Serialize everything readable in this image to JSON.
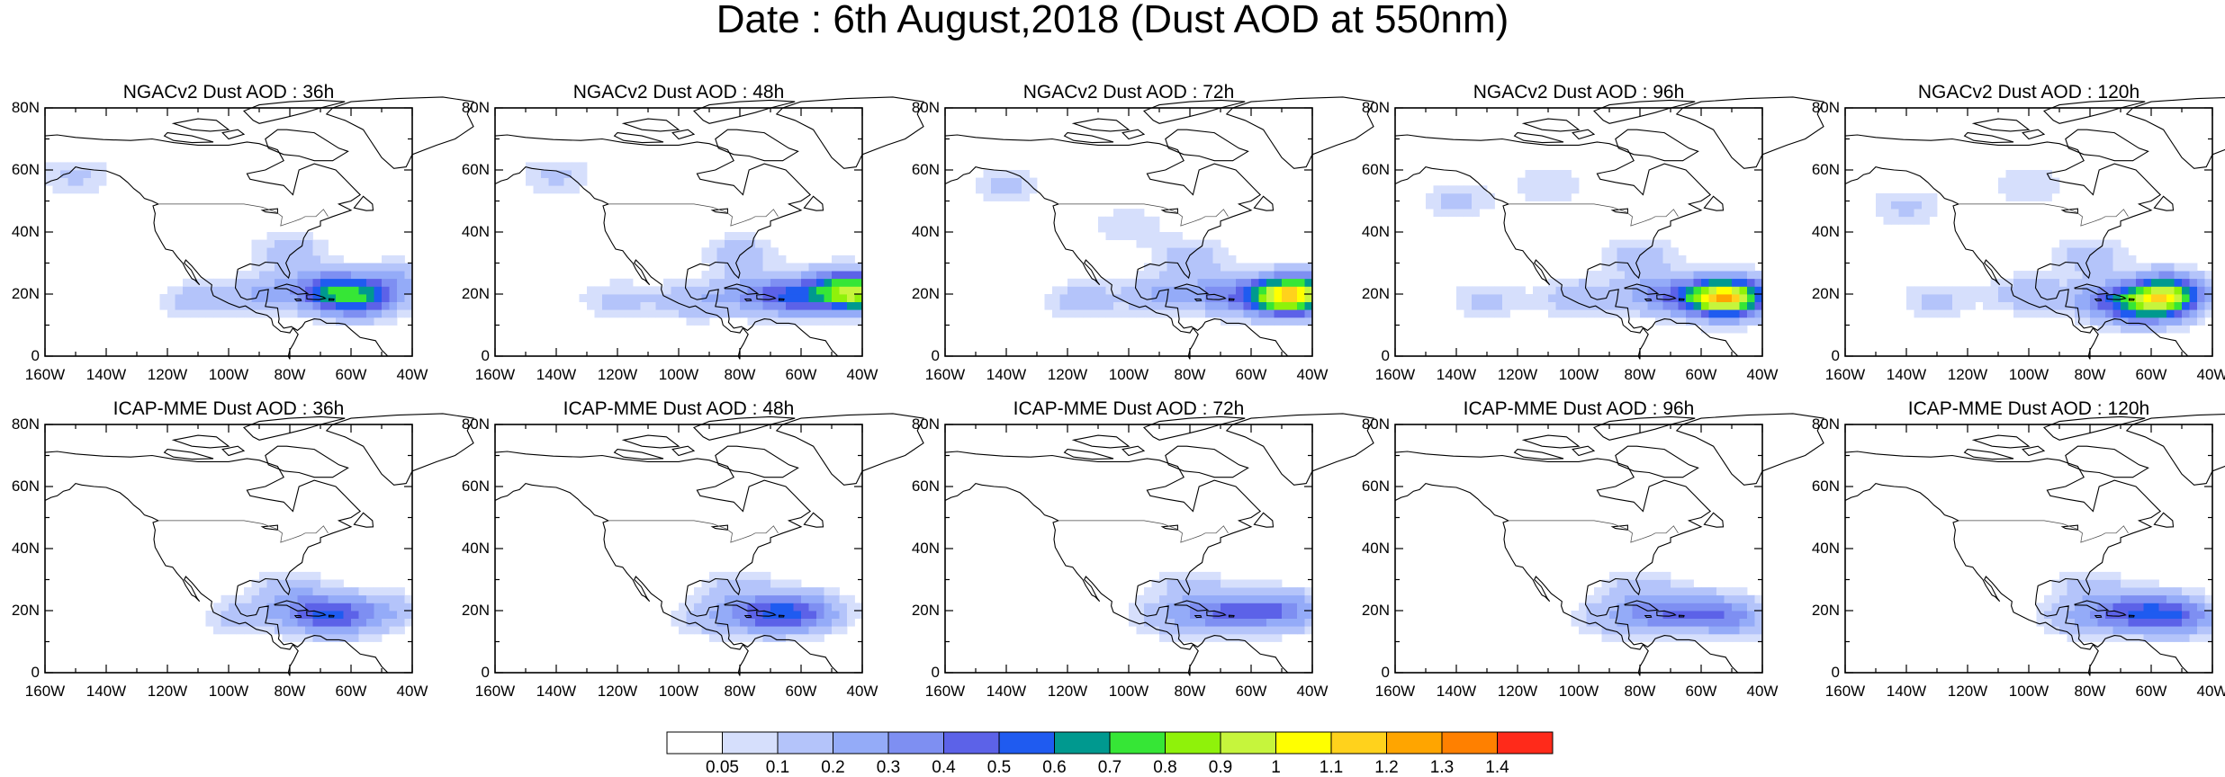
{
  "title": "Date : 6th August,2018 (Dust AOD at 550nm)",
  "axes": {
    "lon_ticks": [
      "160W",
      "140W",
      "120W",
      "100W",
      "80W",
      "60W",
      "40W"
    ],
    "lat_ticks": [
      "0",
      "20N",
      "40N",
      "60N",
      "80N"
    ],
    "lon_range": [
      -160,
      -40
    ],
    "lat_range": [
      0,
      80
    ]
  },
  "panels": [
    {
      "title": "NGACv2 Dust AOD : 36h"
    },
    {
      "title": "NGACv2 Dust AOD : 48h"
    },
    {
      "title": "NGACv2 Dust AOD : 72h"
    },
    {
      "title": "NGACv2 Dust AOD : 96h"
    },
    {
      "title": "NGACv2 Dust AOD : 120h"
    },
    {
      "title": "ICAP-MME Dust AOD : 36h"
    },
    {
      "title": "ICAP-MME Dust AOD : 48h"
    },
    {
      "title": "ICAP-MME Dust AOD : 72h"
    },
    {
      "title": "ICAP-MME Dust AOD : 96h"
    },
    {
      "title": "ICAP-MME Dust AOD : 120h"
    }
  ],
  "colorbar": {
    "labels": [
      "0.05",
      "0.1",
      "0.2",
      "0.3",
      "0.4",
      "0.5",
      "0.6",
      "0.7",
      "0.8",
      "0.9",
      "1",
      "1.1",
      "1.2",
      "1.3",
      "1.4"
    ],
    "colors": [
      "#ffffff",
      "#d6dffc",
      "#b4c4fa",
      "#94abf8",
      "#7e8ff2",
      "#5c62e8",
      "#1f5bf0",
      "#00998f",
      "#36e636",
      "#8ff20a",
      "#c6f53c",
      "#ffff00",
      "#ffd21c",
      "#ffa500",
      "#ff8000",
      "#ff2a1a"
    ]
  },
  "plumes": [
    [
      {
        "lon": -62,
        "lat": 20,
        "v": 0.42
      },
      {
        "lon": -70,
        "lat": 22,
        "v": 0.28
      },
      {
        "lon": -56,
        "lat": 18,
        "v": 0.3
      },
      {
        "lon": -88,
        "lat": 20,
        "v": 0.2
      },
      {
        "lon": -110,
        "lat": 18,
        "v": 0.15
      },
      {
        "lon": -80,
        "lat": 34,
        "v": 0.15
      },
      {
        "lon": -45,
        "lat": 24,
        "v": 0.22
      },
      {
        "lon": -150,
        "lat": 58,
        "v": 0.12
      }
    ],
    [
      {
        "lon": -62,
        "lat": 19,
        "v": 0.38
      },
      {
        "lon": -40,
        "lat": 20,
        "v": 0.7
      },
      {
        "lon": -48,
        "lat": 22,
        "v": 0.4
      },
      {
        "lon": -75,
        "lat": 20,
        "v": 0.25
      },
      {
        "lon": -95,
        "lat": 18,
        "v": 0.18
      },
      {
        "lon": -120,
        "lat": 18,
        "v": 0.13
      },
      {
        "lon": -80,
        "lat": 33,
        "v": 0.15
      },
      {
        "lon": -140,
        "lat": 58,
        "v": 0.12
      }
    ],
    [
      {
        "lon": -45,
        "lat": 20,
        "v": 0.85
      },
      {
        "lon": -52,
        "lat": 19,
        "v": 0.45
      },
      {
        "lon": -70,
        "lat": 20,
        "v": 0.3
      },
      {
        "lon": -90,
        "lat": 20,
        "v": 0.2
      },
      {
        "lon": -115,
        "lat": 18,
        "v": 0.15
      },
      {
        "lon": -80,
        "lat": 32,
        "v": 0.15
      },
      {
        "lon": -140,
        "lat": 55,
        "v": 0.12
      },
      {
        "lon": -100,
        "lat": 42,
        "v": 0.1
      }
    ],
    [
      {
        "lon": -50,
        "lat": 19,
        "v": 0.88
      },
      {
        "lon": -58,
        "lat": 19,
        "v": 0.45
      },
      {
        "lon": -75,
        "lat": 20,
        "v": 0.28
      },
      {
        "lon": -100,
        "lat": 19,
        "v": 0.18
      },
      {
        "lon": -130,
        "lat": 18,
        "v": 0.12
      },
      {
        "lon": -140,
        "lat": 50,
        "v": 0.12
      },
      {
        "lon": -110,
        "lat": 55,
        "v": 0.1
      },
      {
        "lon": -80,
        "lat": 32,
        "v": 0.15
      }
    ],
    [
      {
        "lon": -55,
        "lat": 20,
        "v": 0.85
      },
      {
        "lon": -62,
        "lat": 16,
        "v": 0.45
      },
      {
        "lon": -75,
        "lat": 18,
        "v": 0.3
      },
      {
        "lon": -100,
        "lat": 20,
        "v": 0.18
      },
      {
        "lon": -130,
        "lat": 18,
        "v": 0.12
      },
      {
        "lon": -140,
        "lat": 48,
        "v": 0.12
      },
      {
        "lon": -100,
        "lat": 55,
        "v": 0.1
      },
      {
        "lon": -80,
        "lat": 32,
        "v": 0.15
      }
    ],
    [
      {
        "lon": -65,
        "lat": 18,
        "v": 0.38
      },
      {
        "lon": -75,
        "lat": 20,
        "v": 0.25
      },
      {
        "lon": -50,
        "lat": 20,
        "v": 0.2
      },
      {
        "lon": -95,
        "lat": 18,
        "v": 0.15
      },
      {
        "lon": -80,
        "lat": 28,
        "v": 0.12
      }
    ],
    [
      {
        "lon": -65,
        "lat": 19,
        "v": 0.35
      },
      {
        "lon": -75,
        "lat": 19,
        "v": 0.25
      },
      {
        "lon": -55,
        "lat": 20,
        "v": 0.2
      },
      {
        "lon": -90,
        "lat": 18,
        "v": 0.14
      },
      {
        "lon": -80,
        "lat": 28,
        "v": 0.12
      }
    ],
    [
      {
        "lon": -72,
        "lat": 19,
        "v": 0.3
      },
      {
        "lon": -48,
        "lat": 20,
        "v": 0.3
      },
      {
        "lon": -60,
        "lat": 20,
        "v": 0.22
      },
      {
        "lon": -88,
        "lat": 18,
        "v": 0.15
      },
      {
        "lon": -80,
        "lat": 28,
        "v": 0.12
      }
    ],
    [
      {
        "lon": -75,
        "lat": 19,
        "v": 0.28
      },
      {
        "lon": -50,
        "lat": 18,
        "v": 0.3
      },
      {
        "lon": -62,
        "lat": 20,
        "v": 0.22
      },
      {
        "lon": -90,
        "lat": 18,
        "v": 0.15
      },
      {
        "lon": -80,
        "lat": 28,
        "v": 0.12
      }
    ],
    [
      {
        "lon": -70,
        "lat": 19,
        "v": 0.3
      },
      {
        "lon": -50,
        "lat": 18,
        "v": 0.35
      },
      {
        "lon": -60,
        "lat": 20,
        "v": 0.25
      },
      {
        "lon": -85,
        "lat": 18,
        "v": 0.16
      },
      {
        "lon": -80,
        "lat": 28,
        "v": 0.12
      }
    ]
  ]
}
